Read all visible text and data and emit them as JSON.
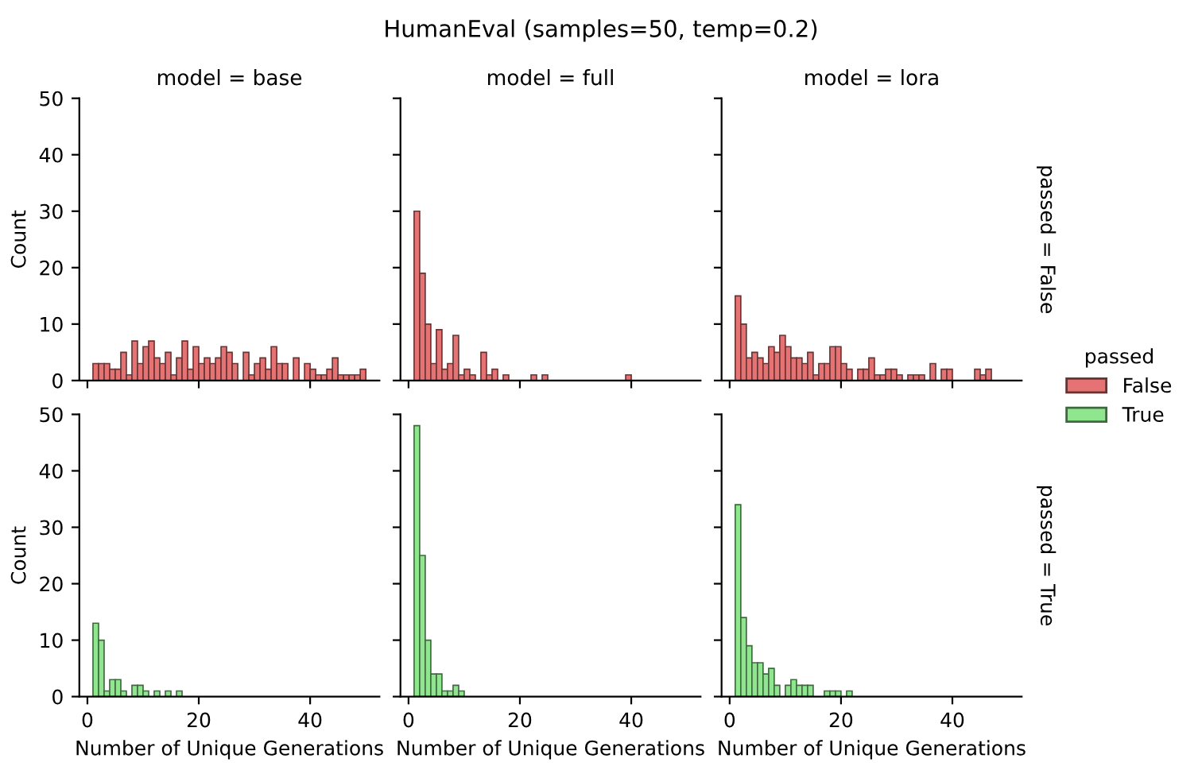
{
  "chart_data": [
    {
      "type": "histogram",
      "title": "model = base",
      "ylabel": "Count",
      "annotations": [
        "HumanEval (samples=50, temp=0.2)"
      ],
      "xlim": [
        -1.45,
        52.45
      ],
      "xticks": [
        0,
        20,
        40
      ],
      "ylim": [
        0,
        50
      ],
      "yticks": [
        0,
        10,
        20,
        30,
        40,
        50
      ],
      "tick_labels": "y",
      "grid": false,
      "bins": [
        1,
        2,
        3,
        4,
        5,
        6,
        7,
        8,
        9,
        10,
        11,
        12,
        13,
        14,
        15,
        16,
        17,
        18,
        19,
        20,
        21,
        22,
        23,
        24,
        25,
        26,
        27,
        28,
        29,
        30,
        31,
        32,
        33,
        34,
        35,
        36,
        37,
        38,
        39,
        40,
        41,
        42,
        43,
        44,
        45,
        46,
        47,
        48,
        49,
        50
      ],
      "series": [
        {
          "color": "#e57373",
          "values": [
            3,
            3,
            3,
            2,
            2,
            5,
            1,
            7,
            3,
            6,
            7,
            4,
            3,
            5,
            1,
            4,
            7,
            2,
            6,
            3,
            4,
            3,
            4,
            6,
            5,
            3,
            0,
            5,
            1,
            3,
            4,
            2,
            6,
            3,
            3,
            0,
            4,
            0,
            3,
            2,
            1,
            1,
            2,
            4,
            1,
            1,
            1,
            1,
            2
          ]
        }
      ]
    },
    {
      "type": "histogram",
      "title": "model = full",
      "xlim": [
        -1.45,
        52.45
      ],
      "xticks": [
        0,
        20,
        40
      ],
      "ylim": [
        0,
        50
      ],
      "yticks": [
        0,
        10,
        20,
        30,
        40,
        50
      ],
      "tick_labels": false,
      "grid": false,
      "bins": [
        1,
        2,
        3,
        4,
        5,
        6,
        7,
        8,
        9,
        10,
        11,
        12,
        13,
        14,
        15,
        16,
        17,
        18,
        19,
        20,
        21,
        22,
        23,
        24,
        25,
        26,
        27,
        28,
        29,
        30,
        31,
        32,
        33,
        34,
        35,
        36,
        37,
        38,
        39,
        40
      ],
      "series": [
        {
          "color": "#e57373",
          "values": [
            30,
            19,
            10,
            3,
            9,
            2,
            3,
            8,
            1,
            2,
            1,
            0,
            5,
            1,
            2,
            0,
            1,
            0,
            0,
            0,
            0,
            1,
            0,
            1,
            0,
            0,
            0,
            0,
            0,
            0,
            0,
            0,
            0,
            0,
            0,
            0,
            0,
            0,
            1
          ]
        }
      ]
    },
    {
      "type": "histogram",
      "title": "model = lora",
      "annotations": [
        "passed = False"
      ],
      "legend": "right",
      "legend_title": "passed",
      "xlim": [
        -1.45,
        52.45
      ],
      "xticks": [
        0,
        20,
        40
      ],
      "ylim": [
        0,
        50
      ],
      "yticks": [
        0,
        10,
        20,
        30,
        40,
        50
      ],
      "tick_labels": false,
      "grid": false,
      "bins": [
        1,
        2,
        3,
        4,
        5,
        6,
        7,
        8,
        9,
        10,
        11,
        12,
        13,
        14,
        15,
        16,
        17,
        18,
        19,
        20,
        21,
        22,
        23,
        24,
        25,
        26,
        27,
        28,
        29,
        30,
        31,
        32,
        33,
        34,
        35,
        36,
        37,
        38,
        39,
        40,
        41,
        42,
        43,
        44,
        45,
        46,
        47
      ],
      "series": [
        {
          "name": "False",
          "color": "#e57373",
          "values": [
            15,
            10,
            4,
            5,
            4,
            3,
            6,
            5,
            8,
            6,
            4,
            4,
            3,
            5,
            1,
            3,
            3,
            6,
            6,
            3,
            2,
            0,
            2,
            2,
            4,
            1,
            1,
            2,
            2,
            1,
            0,
            1,
            1,
            1,
            0,
            3,
            0,
            2,
            2,
            0,
            0,
            0,
            0,
            2,
            1,
            2
          ]
        }
      ]
    },
    {
      "type": "histogram",
      "xlabel": "Number of Unique Generations",
      "ylabel": "Count",
      "xlim": [
        -1.45,
        52.45
      ],
      "xticks": [
        0,
        20,
        40
      ],
      "ylim": [
        0,
        50
      ],
      "yticks": [
        0,
        10,
        20,
        30,
        40,
        50
      ],
      "grid": false,
      "bins": [
        1,
        2,
        3,
        4,
        5,
        6,
        7,
        8,
        9,
        10,
        11,
        12,
        13,
        14,
        15,
        16,
        17
      ],
      "series": [
        {
          "color": "#8fe68f",
          "values": [
            13,
            10,
            1,
            3,
            3,
            1,
            0,
            2,
            2,
            1,
            0,
            1,
            0,
            1,
            0,
            1
          ]
        }
      ]
    },
    {
      "type": "histogram",
      "xlabel": "Number of Unique Generations",
      "xlim": [
        -1.45,
        52.45
      ],
      "xticks": [
        0,
        20,
        40
      ],
      "ylim": [
        0,
        50
      ],
      "yticks": [
        0,
        10,
        20,
        30,
        40,
        50
      ],
      "tick_labels": "x",
      "grid": false,
      "bins": [
        1,
        2,
        3,
        4,
        5,
        6,
        7,
        8,
        9,
        10
      ],
      "series": [
        {
          "color": "#8fe68f",
          "values": [
            48,
            25,
            10,
            4,
            4,
            1,
            1,
            2,
            1
          ]
        }
      ]
    },
    {
      "type": "histogram",
      "xlabel": "Number of Unique Generations",
      "annotations": [
        "passed = True"
      ],
      "legend": "right",
      "xlim": [
        -1.45,
        52.45
      ],
      "xticks": [
        0,
        20,
        40
      ],
      "ylim": [
        0,
        50
      ],
      "yticks": [
        0,
        10,
        20,
        30,
        40,
        50
      ],
      "tick_labels": "x",
      "grid": false,
      "bins": [
        1,
        2,
        3,
        4,
        5,
        6,
        7,
        8,
        9,
        10,
        11,
        12,
        13,
        14,
        15,
        16,
        17,
        18,
        19,
        20,
        21,
        22
      ],
      "series": [
        {
          "name": "True",
          "color": "#8fe68f",
          "values": [
            34,
            14,
            9,
            6,
            6,
            4,
            5,
            2,
            0,
            2,
            3,
            2,
            2,
            2,
            0,
            0,
            1,
            1,
            1,
            0,
            1
          ]
        }
      ]
    }
  ]
}
